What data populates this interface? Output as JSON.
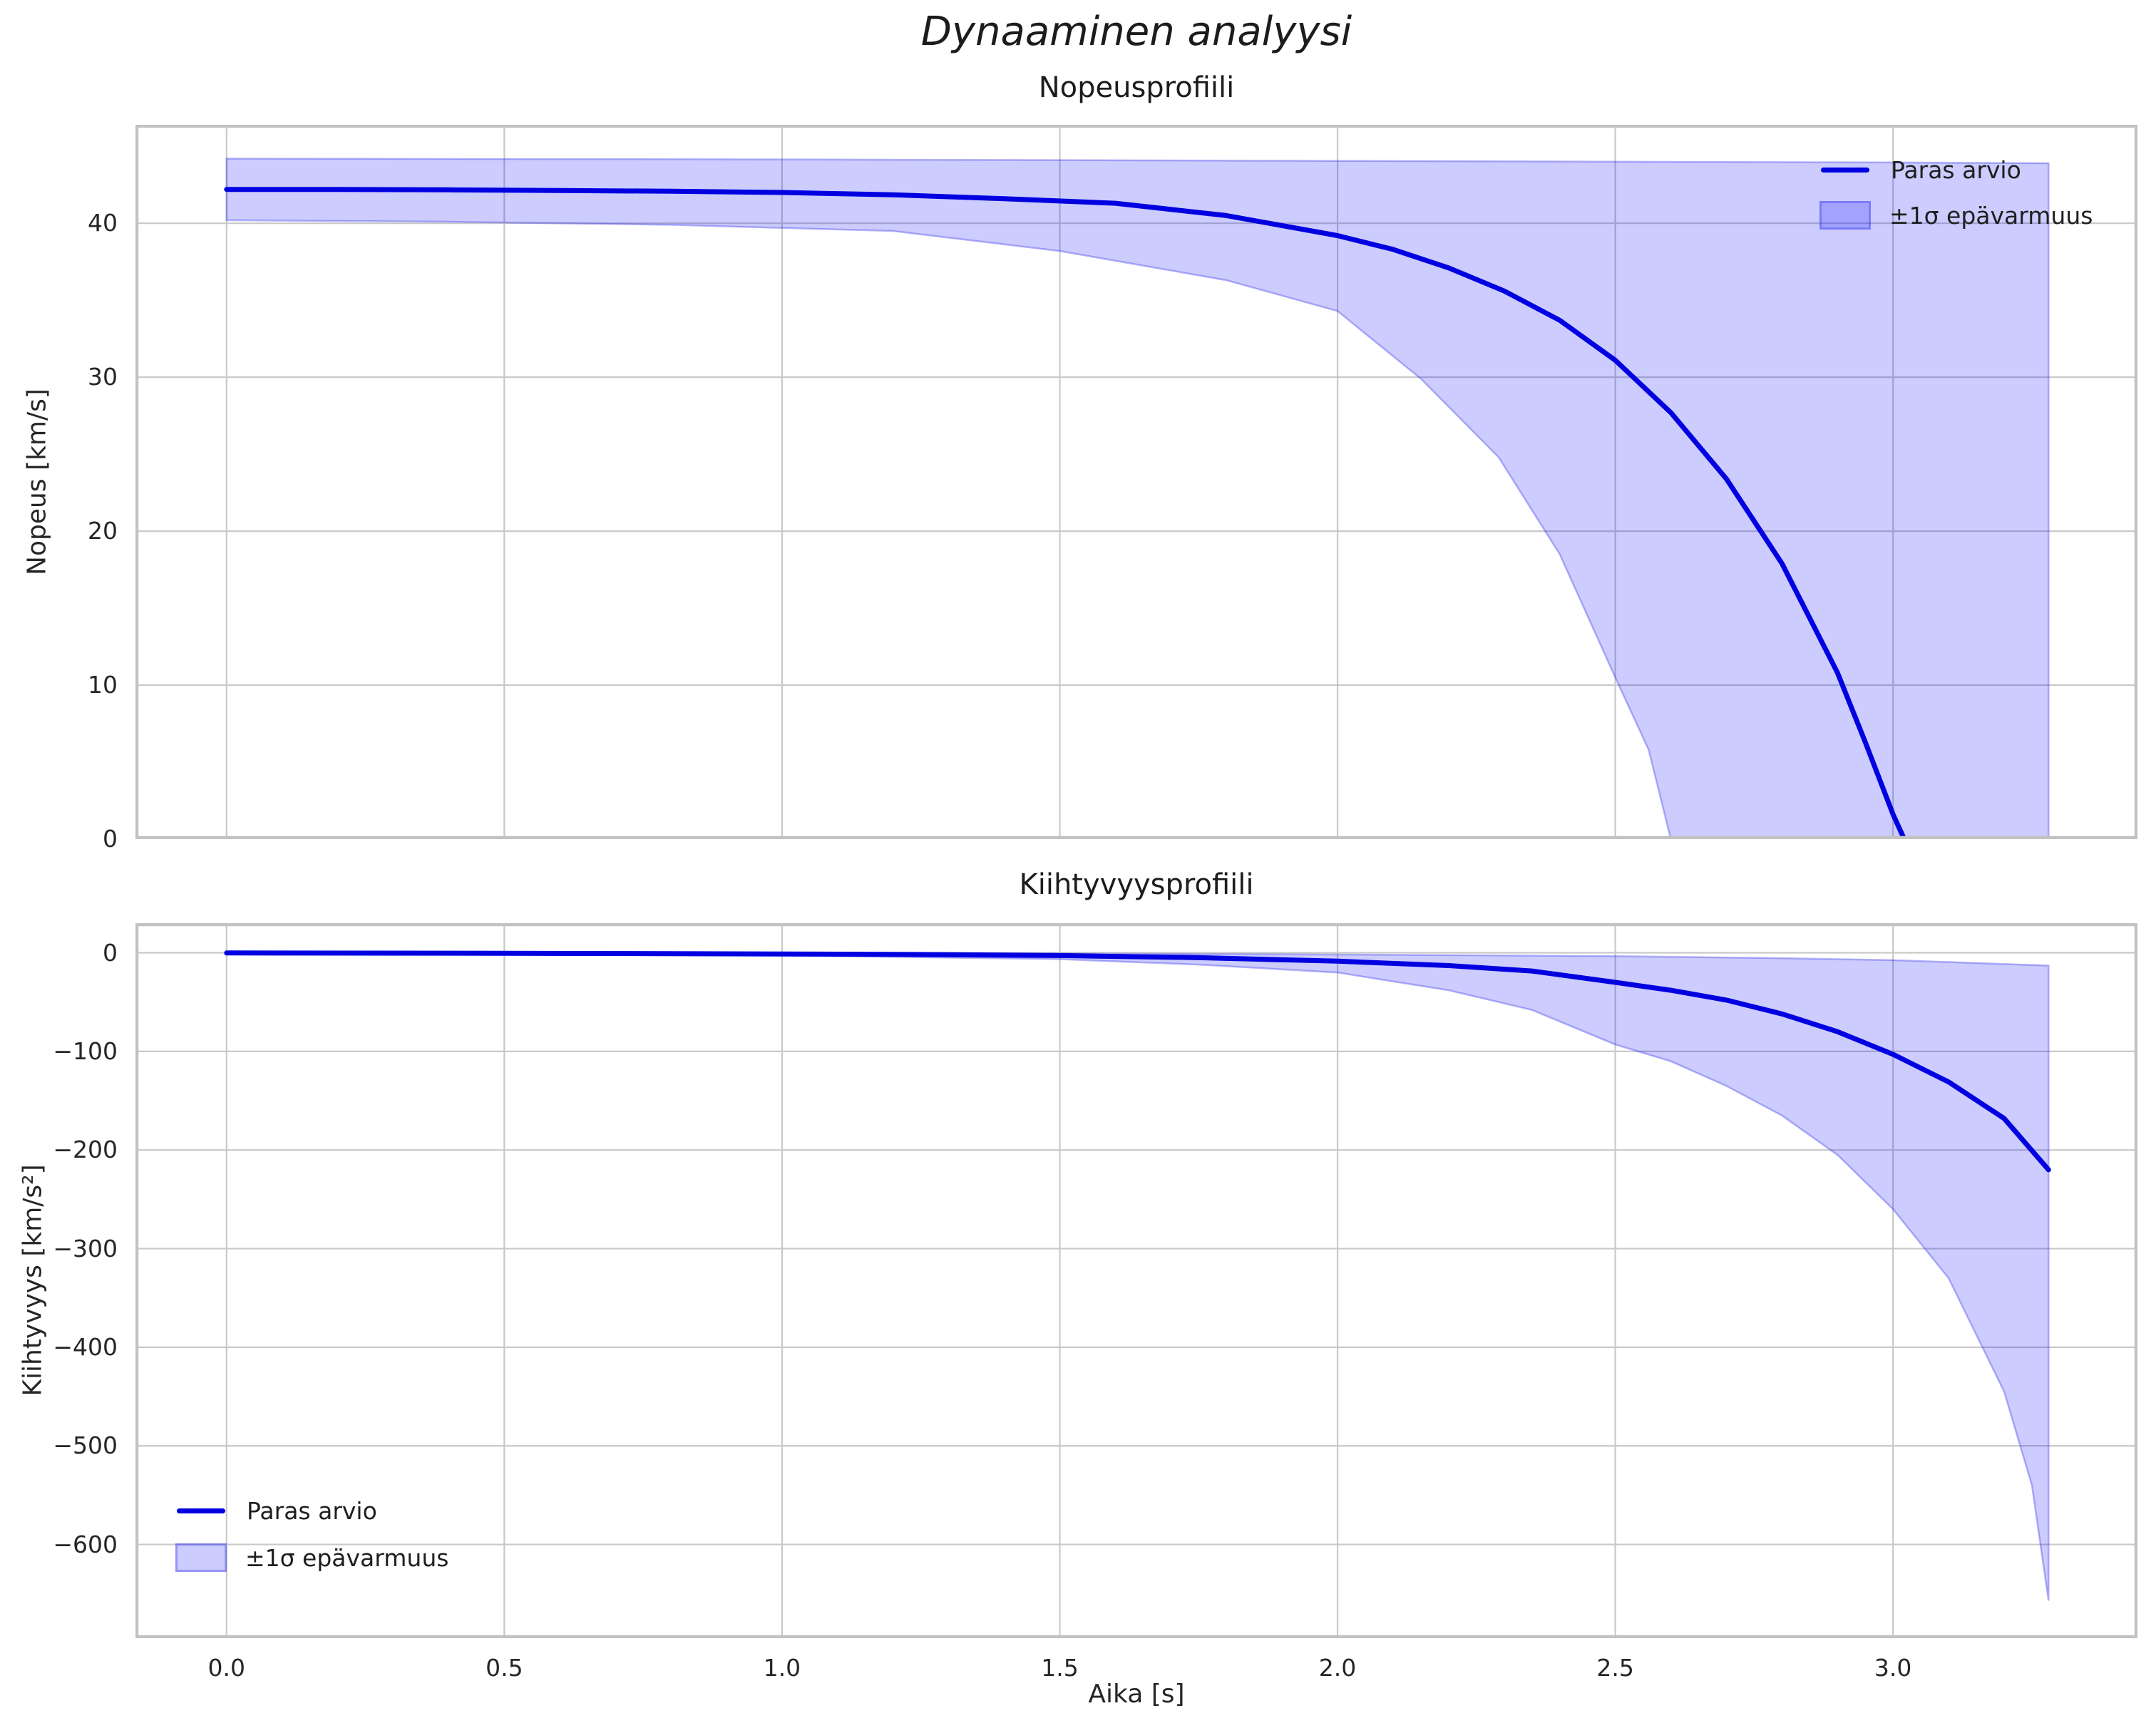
{
  "figure_title": "Dynaaminen analyysi",
  "colors": {
    "line": "#0000e0",
    "band_fill": "rgba(0,0,255,0.20)",
    "band_edge": "rgba(60,60,235,0.38)",
    "grid": "#c9c9c9",
    "spine": "#c2c2c2",
    "text": "#262626"
  },
  "plots": [
    {
      "title": "Nopeusprofiili",
      "ylabel": "Nopeus [km/s]",
      "xlabel": "",
      "legend": {
        "line": "Paras arvio",
        "band": "±1σ epävarmuus"
      }
    },
    {
      "title": "Kiihtyvyysprofiili",
      "ylabel": "Kiihtyvyys [km/s²]",
      "xlabel": "Aika [s]",
      "legend": {
        "line": "Paras arvio",
        "band": "±1σ epävarmuus"
      }
    }
  ],
  "chart_data": [
    {
      "type": "line",
      "title": "Nopeusprofiili",
      "xlabel": "",
      "ylabel": "Nopeus [km/s]",
      "xlim": [
        -0.164,
        3.44
      ],
      "ylim": [
        0,
        46.4
      ],
      "xticks": [
        0.0,
        0.5,
        1.0,
        1.5,
        2.0,
        2.5,
        3.0
      ],
      "show_xtick_labels": false,
      "xtick_labels": [],
      "yticks": [
        {
          "value": 0,
          "label": "0"
        },
        {
          "value": 10,
          "label": "10"
        },
        {
          "value": 20,
          "label": "20"
        },
        {
          "value": 30,
          "label": "30"
        },
        {
          "value": 40,
          "label": "40"
        }
      ],
      "grid": true,
      "legend_position": "upper right",
      "series": [
        {
          "name": "Paras arvio",
          "type": "line",
          "points": [
            [
              0,
              42.2
            ],
            [
              0.2,
              42.2
            ],
            [
              0.4,
              42.17
            ],
            [
              0.6,
              42.13
            ],
            [
              0.8,
              42.08
            ],
            [
              1.0,
              42.0
            ],
            [
              1.2,
              41.85
            ],
            [
              1.4,
              41.6
            ],
            [
              1.6,
              41.3
            ],
            [
              1.8,
              40.5
            ],
            [
              2.0,
              39.2
            ],
            [
              2.1,
              38.3
            ],
            [
              2.2,
              37.1
            ],
            [
              2.3,
              35.6
            ],
            [
              2.4,
              33.7
            ],
            [
              2.5,
              31.1
            ],
            [
              2.6,
              27.7
            ],
            [
              2.7,
              23.4
            ],
            [
              2.8,
              17.9
            ],
            [
              2.9,
              10.8
            ],
            [
              2.95,
              6.3
            ],
            [
              3.0,
              1.6
            ],
            [
              3.02,
              0
            ]
          ]
        },
        {
          "name": "±1σ epävarmuus",
          "type": "band",
          "upper": [
            [
              0,
              44.2
            ],
            [
              1.0,
              44.15
            ],
            [
              2.0,
              44.05
            ],
            [
              3.0,
              43.95
            ],
            [
              3.28,
              43.9
            ]
          ],
          "lower": [
            [
              0,
              40.2
            ],
            [
              0.4,
              40.1
            ],
            [
              0.8,
              39.9
            ],
            [
              1.2,
              39.5
            ],
            [
              1.5,
              38.2
            ],
            [
              1.8,
              36.3
            ],
            [
              2.0,
              34.3
            ],
            [
              2.15,
              29.9
            ],
            [
              2.29,
              24.8
            ],
            [
              2.4,
              18.5
            ],
            [
              2.5,
              10.5
            ],
            [
              2.56,
              5.8
            ],
            [
              2.6,
              0
            ],
            [
              3.28,
              0
            ]
          ]
        }
      ]
    },
    {
      "type": "line",
      "title": "Kiihtyvyysprofiili",
      "xlabel": "Aika [s]",
      "ylabel": "Kiihtyvyys [km/s²]",
      "xlim": [
        -0.164,
        3.44
      ],
      "ylim": [
        -695,
        30
      ],
      "xticks": [
        0.0,
        0.5,
        1.0,
        1.5,
        2.0,
        2.5,
        3.0
      ],
      "show_xtick_labels": true,
      "xtick_labels": [
        "0.0",
        "0.5",
        "1.0",
        "1.5",
        "2.0",
        "2.5",
        "3.0"
      ],
      "yticks": [
        {
          "value": 0,
          "label": "0"
        },
        {
          "value": -100,
          "label": "−100"
        },
        {
          "value": -200,
          "label": "−200"
        },
        {
          "value": -300,
          "label": "−300"
        },
        {
          "value": -400,
          "label": "−400"
        },
        {
          "value": -500,
          "label": "−500"
        },
        {
          "value": -600,
          "label": "−600"
        }
      ],
      "grid": true,
      "legend_position": "lower left",
      "series": [
        {
          "name": "Paras arvio",
          "type": "line",
          "points": [
            [
              0,
              -0.2
            ],
            [
              0.5,
              -0.5
            ],
            [
              1.0,
              -1.2
            ],
            [
              1.25,
              -1.8
            ],
            [
              1.5,
              -2.8
            ],
            [
              1.75,
              -5
            ],
            [
              2.0,
              -8.5
            ],
            [
              2.2,
              -13
            ],
            [
              2.35,
              -18.5
            ],
            [
              2.5,
              -30
            ],
            [
              2.6,
              -38
            ],
            [
              2.7,
              -48
            ],
            [
              2.8,
              -62
            ],
            [
              2.9,
              -80
            ],
            [
              3.0,
              -103
            ],
            [
              3.1,
              -131
            ],
            [
              3.2,
              -168
            ],
            [
              3.28,
              -220
            ]
          ]
        },
        {
          "name": "±1σ epävarmuus",
          "type": "band",
          "upper": [
            [
              0,
              -0.1
            ],
            [
              1.0,
              -0.4
            ],
            [
              1.5,
              -0.9
            ],
            [
              2.0,
              -1.8
            ],
            [
              2.5,
              -3.5
            ],
            [
              2.8,
              -5.5
            ],
            [
              3.0,
              -7.5
            ],
            [
              3.28,
              -13
            ]
          ],
          "lower": [
            [
              0,
              -0.4
            ],
            [
              0.5,
              -1
            ],
            [
              1.0,
              -2.5
            ],
            [
              1.5,
              -6.5
            ],
            [
              1.75,
              -12
            ],
            [
              2.0,
              -20
            ],
            [
              2.2,
              -38
            ],
            [
              2.35,
              -58
            ],
            [
              2.5,
              -93
            ],
            [
              2.6,
              -110
            ],
            [
              2.7,
              -135
            ],
            [
              2.8,
              -165
            ],
            [
              2.9,
              -205
            ],
            [
              3.0,
              -260
            ],
            [
              3.1,
              -330
            ],
            [
              3.2,
              -445
            ],
            [
              3.25,
              -540
            ],
            [
              3.28,
              -657
            ]
          ]
        }
      ]
    }
  ]
}
